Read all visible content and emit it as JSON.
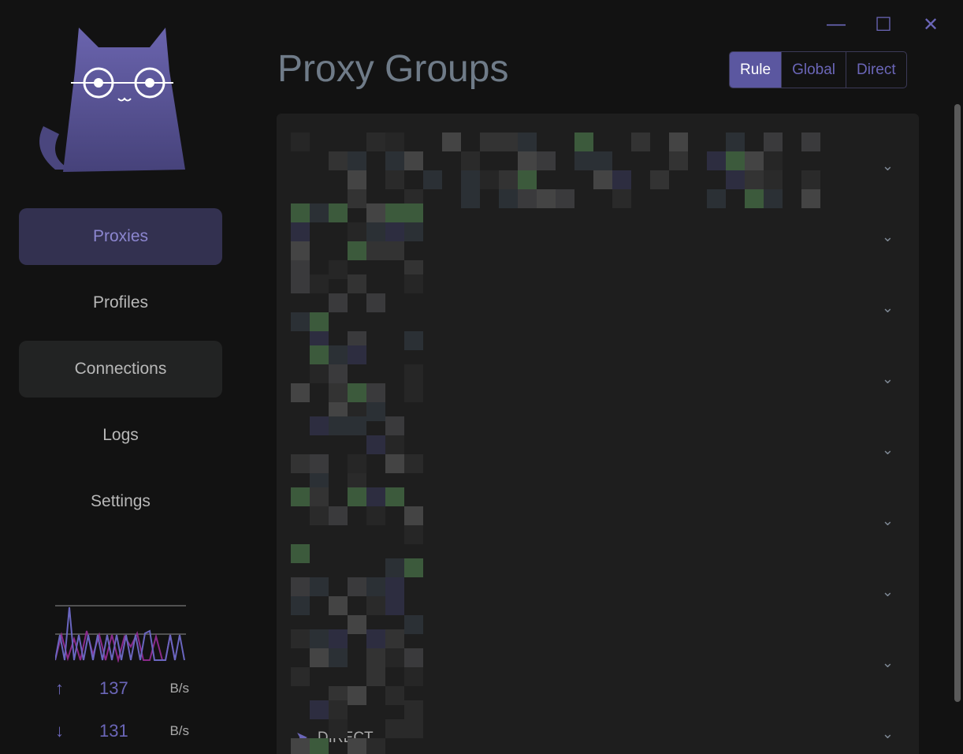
{
  "window": {
    "minimize_icon": "minimize-icon",
    "maximize_icon": "maximize-icon",
    "close_icon": "close-icon"
  },
  "sidebar": {
    "items": [
      {
        "label": "Proxies",
        "active": true
      },
      {
        "label": "Profiles"
      },
      {
        "label": "Connections"
      },
      {
        "label": "Logs"
      },
      {
        "label": "Settings"
      }
    ],
    "traffic": {
      "upload": "137",
      "upload_unit": "B/s",
      "download": "131",
      "download_unit": "B/s"
    }
  },
  "header": {
    "title": "Proxy Groups",
    "modes": [
      "Rule",
      "Global",
      "Direct"
    ],
    "selected_mode": "Rule"
  },
  "groups": {
    "count_visible": 9,
    "last_row_proxy": "DIRECT"
  },
  "colors": {
    "accent": "#5b57a0",
    "background": "#121212",
    "panel": "#1e1e1e"
  }
}
